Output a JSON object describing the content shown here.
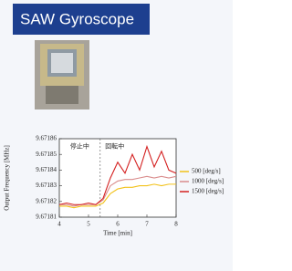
{
  "header": {
    "title": "SAW Gyroscope"
  },
  "chart_data": {
    "type": "line",
    "xlabel": "Time [min]",
    "ylabel": "Output Frequency [MHz]",
    "annotations": [
      "停止中",
      "回転中"
    ],
    "divider_x": 5.4,
    "x": [
      4,
      4.25,
      4.5,
      4.75,
      5,
      5.25,
      5.5,
      5.75,
      6,
      6.25,
      6.5,
      6.75,
      7,
      7.25,
      7.5,
      7.75,
      8
    ],
    "series": [
      {
        "name": "500 [deg/s]",
        "color": "#f2c21b",
        "values": [
          9.671817,
          9.671817,
          9.671816,
          9.671817,
          9.671817,
          9.671817,
          9.671819,
          9.671825,
          9.671828,
          9.671829,
          9.671829,
          9.67183,
          9.67183,
          9.671831,
          9.67183,
          9.671831,
          9.671831
        ]
      },
      {
        "name": "1000 [deg/s]",
        "color": "#d98c8c",
        "values": [
          9.671818,
          9.671818,
          9.671817,
          9.671818,
          9.671818,
          9.671818,
          9.671821,
          9.67183,
          9.671833,
          9.671834,
          9.671834,
          9.671835,
          9.671836,
          9.671835,
          9.671836,
          9.671835,
          9.671836
        ]
      },
      {
        "name": "1500 [deg/s]",
        "color": "#d42020",
        "values": [
          9.671818,
          9.671819,
          9.671818,
          9.671818,
          9.671819,
          9.671818,
          9.671822,
          9.671835,
          9.671845,
          9.671838,
          9.67185,
          9.67184,
          9.671855,
          9.671842,
          9.671852,
          9.67184,
          9.671838
        ]
      }
    ],
    "xlim": [
      4,
      8
    ],
    "xticks": [
      4,
      5,
      6,
      7,
      8
    ],
    "ylim": [
      9.67181,
      9.67186
    ],
    "yticks": [
      9.67181,
      9.67182,
      9.67183,
      9.67184,
      9.67185,
      9.67186
    ]
  }
}
